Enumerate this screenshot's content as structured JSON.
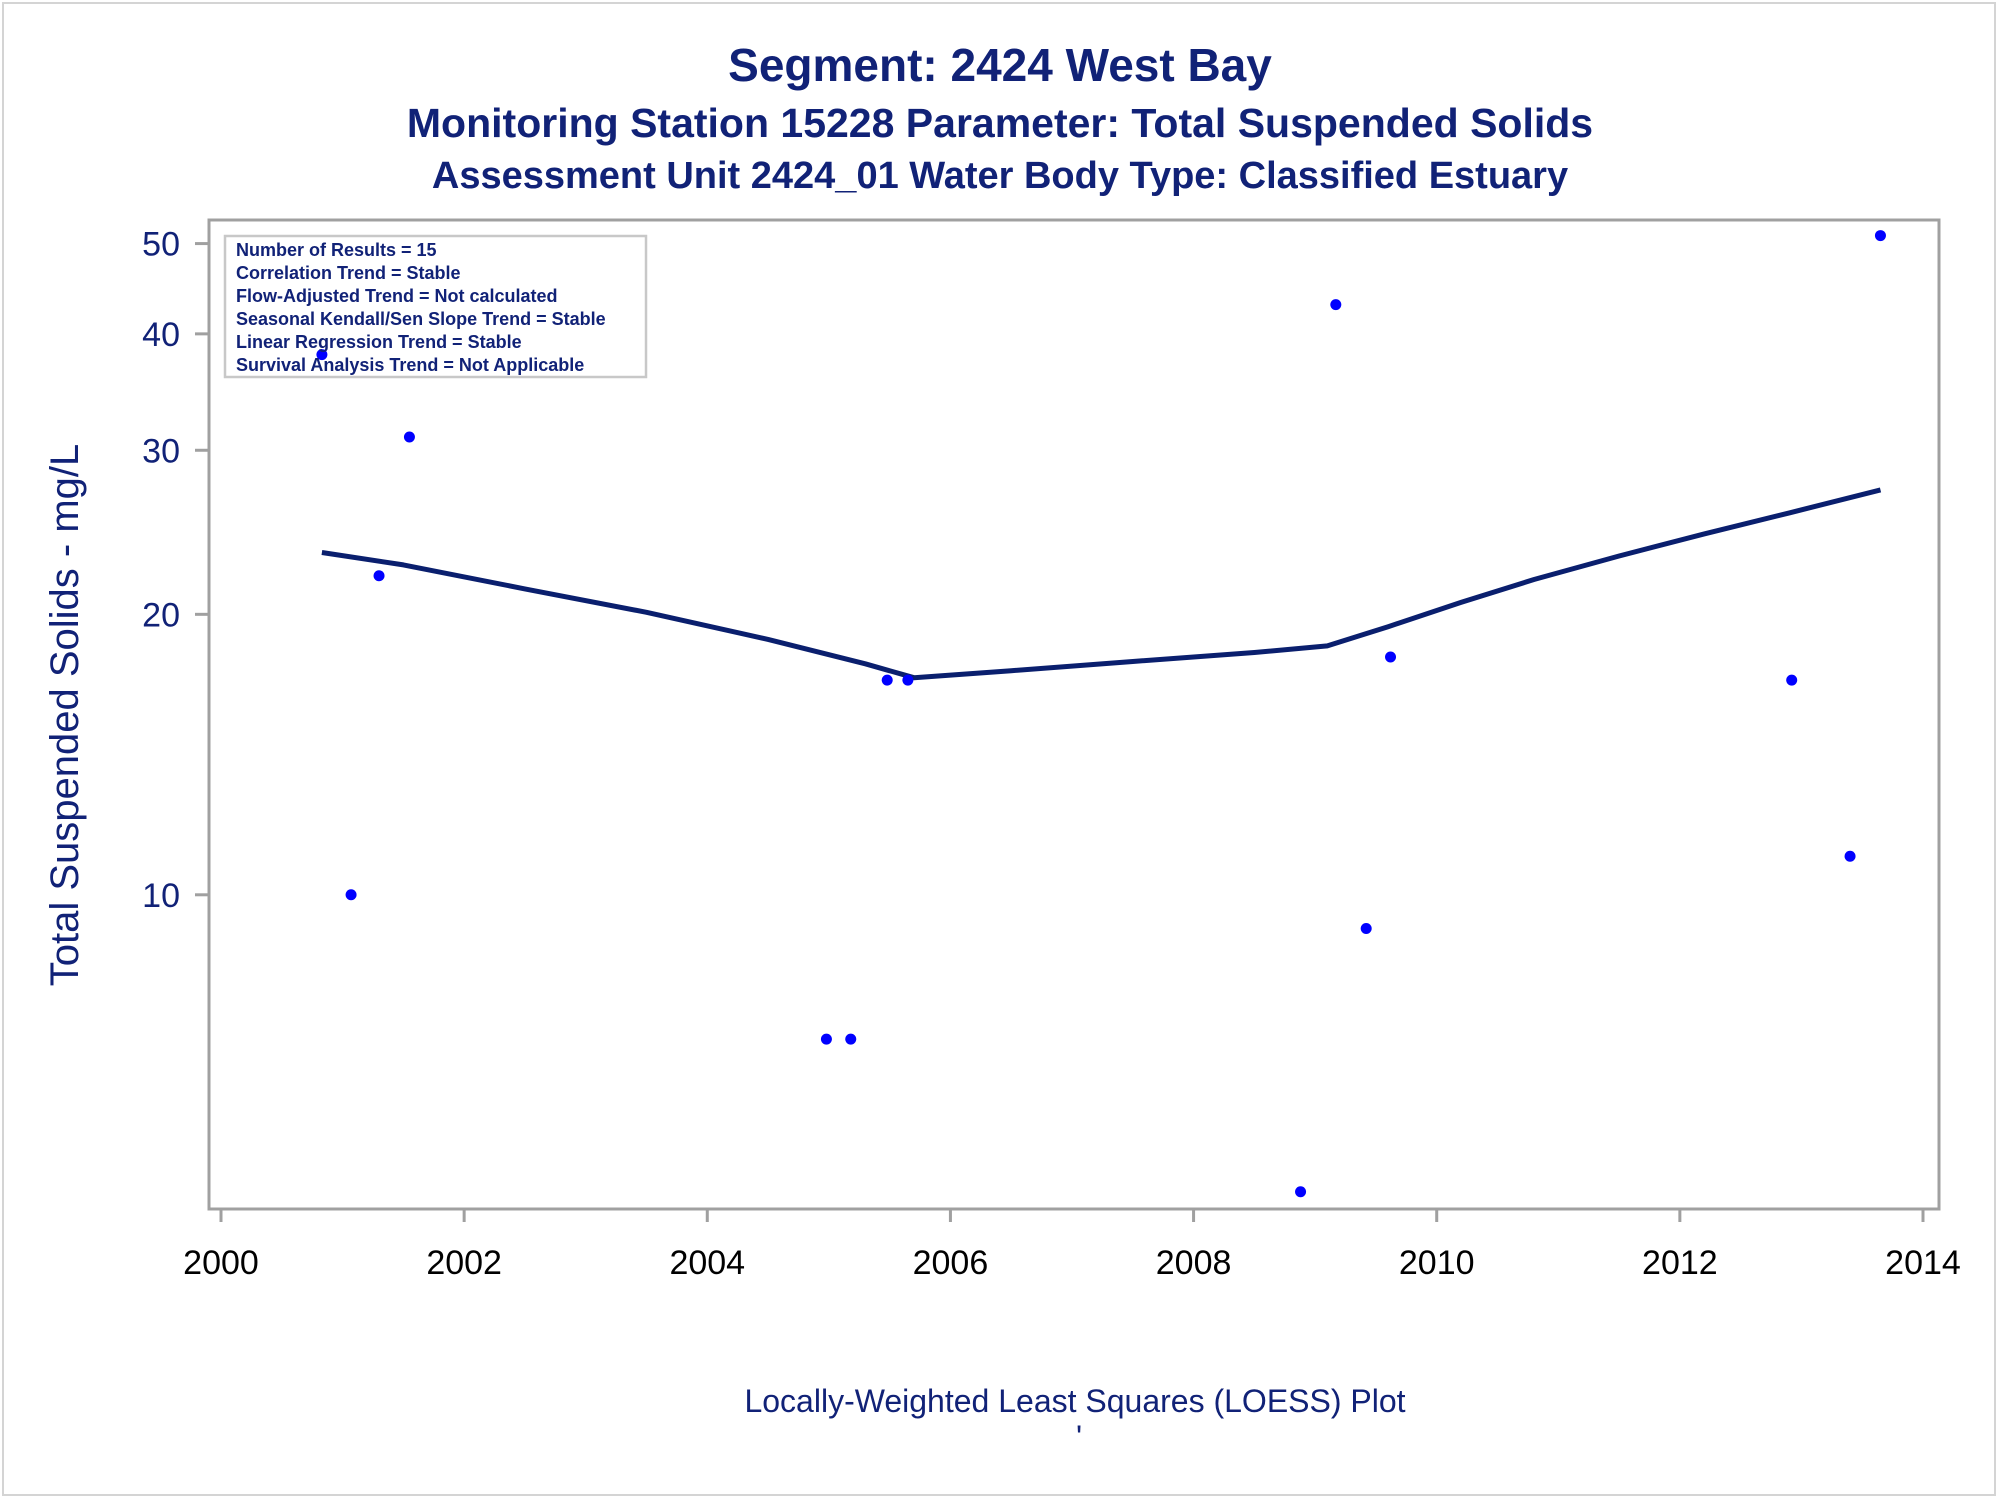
{
  "titles": {
    "line1": "Segment: 2424  West Bay",
    "line2": "Monitoring Station 15228 Parameter: Total Suspended Solids",
    "line3": "Assessment Unit 2424_01   Water Body Type: Classified Estuary"
  },
  "footnote": "Locally-Weighted Least Squares (LOESS) Plot",
  "footnote_mark": "'",
  "inset": {
    "lines": [
      "Number of Results = 15",
      "Correlation Trend = Stable",
      "Flow-Adjusted Trend = Not calculated",
      "Seasonal Kendall/Sen Slope Trend = Stable",
      "Linear Regression Trend = Stable",
      "Survival Analysis Trend = Not Applicable"
    ]
  },
  "colors": {
    "title": "#112277",
    "points": "#0000ff",
    "line": "#0a1f6e",
    "axis": "#a0a0a0"
  },
  "chart_data": {
    "type": "scatter",
    "ylabel": "Total Suspended Solids - mg/L",
    "xlabel": "",
    "yscale": "log",
    "xlim": [
      2000,
      2014
    ],
    "ylim": [
      4.6,
      53
    ],
    "xticks": [
      2000,
      2002,
      2004,
      2006,
      2008,
      2010,
      2012,
      2014
    ],
    "yticks": [
      10,
      20,
      30,
      40,
      50
    ],
    "grid": false,
    "legend": "none",
    "series": [
      {
        "kind": "points",
        "x": [
          2000.83,
          2001.07,
          2001.3,
          2001.55,
          2004.98,
          2005.18,
          2005.48,
          2005.65,
          2008.88,
          2009.17,
          2009.42,
          2009.62,
          2012.92,
          2013.4,
          2013.65
        ],
        "y": [
          38,
          10,
          22,
          31,
          7,
          7,
          17,
          17,
          4.8,
          43,
          9.2,
          18,
          17,
          11,
          51
        ]
      },
      {
        "kind": "line",
        "x": [
          2000.83,
          2001.5,
          2002.5,
          2003.5,
          2004.5,
          2005.3,
          2005.7,
          2006.5,
          2007.5,
          2008.5,
          2009.1,
          2009.6,
          2010.2,
          2010.8,
          2011.5,
          2012.2,
          2012.9,
          2013.65
        ],
        "y": [
          23.3,
          22.6,
          21.3,
          20.1,
          18.8,
          17.7,
          17.1,
          17.4,
          17.8,
          18.2,
          18.5,
          19.4,
          20.6,
          21.8,
          23.1,
          24.4,
          25.7,
          27.2
        ]
      }
    ]
  }
}
